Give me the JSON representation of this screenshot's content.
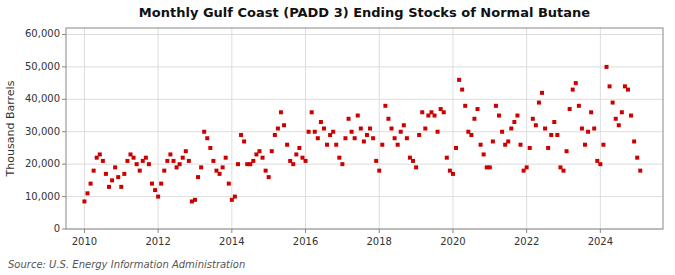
{
  "chart_data": {
    "type": "scatter",
    "title": "Monthly Gulf Coast (PADD 3) Ending Stocks of Normal Butane",
    "ylabel": "Thousand Barrels",
    "source": "Source: U.S. Energy Information Administration",
    "color": "#cc0000",
    "marker": "square",
    "grid": true,
    "xlim": [
      2009.5,
      2025.7
    ],
    "ylim": [
      0,
      62000
    ],
    "xticks": [
      2010,
      2012,
      2014,
      2016,
      2018,
      2020,
      2022,
      2024
    ],
    "yticks": [
      0,
      {
        "value": 10000,
        "label": "10,000"
      },
      {
        "value": 20000,
        "label": "20,000"
      },
      {
        "value": 30000,
        "label": "30,000"
      },
      {
        "value": 40000,
        "label": "40,000"
      },
      {
        "value": 50000,
        "label": "50,000"
      },
      {
        "value": 60000,
        "label": "60,000"
      }
    ],
    "x": [
      2010.0,
      2010.083,
      2010.167,
      2010.25,
      2010.333,
      2010.417,
      2010.5,
      2010.583,
      2010.667,
      2010.75,
      2010.833,
      2010.917,
      2011.0,
      2011.083,
      2011.167,
      2011.25,
      2011.333,
      2011.417,
      2011.5,
      2011.583,
      2011.667,
      2011.75,
      2011.833,
      2011.917,
      2012.0,
      2012.083,
      2012.167,
      2012.25,
      2012.333,
      2012.417,
      2012.5,
      2012.583,
      2012.667,
      2012.75,
      2012.833,
      2012.917,
      2013.0,
      2013.083,
      2013.167,
      2013.25,
      2013.333,
      2013.417,
      2013.5,
      2013.583,
      2013.667,
      2013.75,
      2013.833,
      2013.917,
      2014.0,
      2014.083,
      2014.167,
      2014.25,
      2014.333,
      2014.417,
      2014.5,
      2014.583,
      2014.667,
      2014.75,
      2014.833,
      2014.917,
      2015.0,
      2015.083,
      2015.167,
      2015.25,
      2015.333,
      2015.417,
      2015.5,
      2015.583,
      2015.667,
      2015.75,
      2015.833,
      2015.917,
      2016.0,
      2016.083,
      2016.167,
      2016.25,
      2016.333,
      2016.417,
      2016.5,
      2016.583,
      2016.667,
      2016.75,
      2016.833,
      2016.917,
      2017.0,
      2017.083,
      2017.167,
      2017.25,
      2017.333,
      2017.417,
      2017.5,
      2017.583,
      2017.667,
      2017.75,
      2017.833,
      2017.917,
      2018.0,
      2018.083,
      2018.167,
      2018.25,
      2018.333,
      2018.417,
      2018.5,
      2018.583,
      2018.667,
      2018.75,
      2018.833,
      2018.917,
      2019.0,
      2019.083,
      2019.167,
      2019.25,
      2019.333,
      2019.417,
      2019.5,
      2019.583,
      2019.667,
      2019.75,
      2019.833,
      2019.917,
      2020.0,
      2020.083,
      2020.167,
      2020.25,
      2020.333,
      2020.417,
      2020.5,
      2020.583,
      2020.667,
      2020.75,
      2020.833,
      2020.917,
      2021.0,
      2021.083,
      2021.167,
      2021.25,
      2021.333,
      2021.417,
      2021.5,
      2021.583,
      2021.667,
      2021.75,
      2021.833,
      2021.917,
      2022.0,
      2022.083,
      2022.167,
      2022.25,
      2022.333,
      2022.417,
      2022.5,
      2022.583,
      2022.667,
      2022.75,
      2022.833,
      2022.917,
      2023.0,
      2023.083,
      2023.167,
      2023.25,
      2023.333,
      2023.417,
      2023.5,
      2023.583,
      2023.667,
      2023.75,
      2023.833,
      2023.917,
      2024.0,
      2024.083,
      2024.167,
      2024.25,
      2024.333,
      2024.417,
      2024.5,
      2024.583,
      2024.667,
      2024.75,
      2024.833,
      2024.917,
      2025.0,
      2025.083
    ],
    "values": [
      8500,
      11000,
      14000,
      18000,
      22000,
      23000,
      21000,
      17000,
      13000,
      15000,
      19000,
      16000,
      13000,
      17000,
      21000,
      23000,
      22000,
      20000,
      18000,
      21000,
      22000,
      20000,
      14000,
      12000,
      10000,
      14000,
      18000,
      21000,
      23000,
      21000,
      19000,
      20000,
      22000,
      24000,
      21000,
      8500,
      9000,
      16000,
      19000,
      30000,
      28000,
      25000,
      21000,
      18000,
      17000,
      19000,
      22000,
      14000,
      9000,
      10000,
      20000,
      29000,
      27000,
      20000,
      20000,
      21000,
      23000,
      24000,
      22000,
      18000,
      16000,
      24000,
      29000,
      31000,
      36000,
      32000,
      26000,
      21000,
      20000,
      23000,
      25000,
      22000,
      21000,
      30000,
      36000,
      30000,
      28000,
      33000,
      31000,
      26000,
      29000,
      30000,
      26000,
      22000,
      20000,
      28000,
      34000,
      30000,
      28000,
      35000,
      31000,
      27000,
      29000,
      31000,
      28000,
      21000,
      18000,
      26000,
      38000,
      34000,
      31000,
      28000,
      26000,
      30000,
      32000,
      28000,
      22000,
      21000,
      19000,
      29000,
      36000,
      31000,
      35000,
      36000,
      35000,
      30000,
      37000,
      36000,
      22000,
      18000,
      17000,
      25000,
      46000,
      43000,
      38000,
      30000,
      29000,
      34000,
      37000,
      26000,
      23000,
      19000,
      19000,
      27000,
      38000,
      35000,
      30000,
      26000,
      27000,
      31000,
      33000,
      35000,
      26000,
      18000,
      19000,
      25000,
      34000,
      32000,
      39000,
      42000,
      31000,
      25000,
      29000,
      33000,
      29000,
      19000,
      18000,
      24000,
      37000,
      43000,
      45000,
      38000,
      31000,
      26000,
      30000,
      36000,
      31000,
      21000,
      20000,
      26000,
      50000,
      44000,
      39000,
      34000,
      32000,
      36000,
      44000,
      43000,
      35000,
      27000,
      22000,
      18000
    ]
  }
}
